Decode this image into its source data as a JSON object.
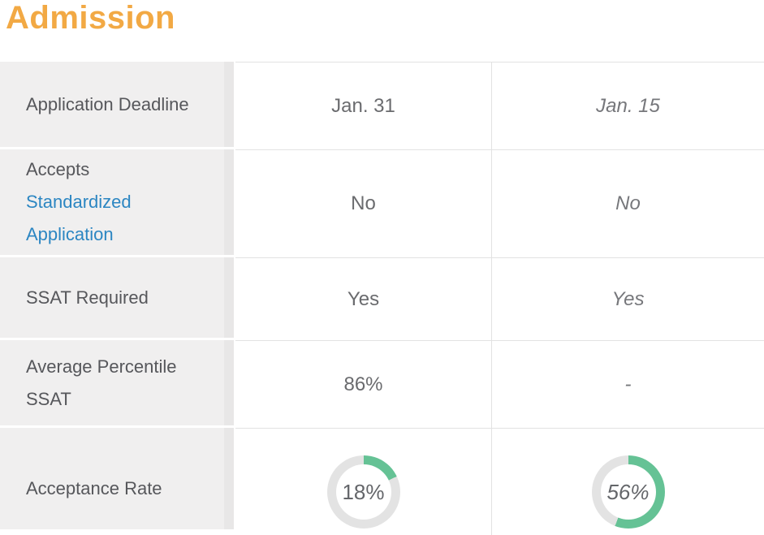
{
  "page": {
    "title": "Admission"
  },
  "colors": {
    "title": "#F2A944",
    "label_bg": "#F0EFEF",
    "label_strip": "#E8E7E7",
    "label_text": "#56575B",
    "link": "#2C86C2",
    "value_primary": "#6A6B6E",
    "value_secondary": "#76777B",
    "border": "#E2E2E2",
    "donut_fill": "#65C295",
    "donut_track": "#E3E3E3",
    "donut_text": "#64666A"
  },
  "table": {
    "rows": [
      {
        "label": "Application Deadline",
        "col1": "Jan. 31",
        "col2": "Jan. 15"
      },
      {
        "label_prefix": "Accepts",
        "label_link": "Standardized Application",
        "col1": "No",
        "col2": "No"
      },
      {
        "label": "SSAT Required",
        "col1": "Yes",
        "col2": "Yes"
      },
      {
        "label": "Average Percentile SSAT",
        "col1": "86%",
        "col2": "-"
      },
      {
        "label": "Acceptance Rate",
        "col1": {
          "display": "18%",
          "percent": 18
        },
        "col2": {
          "display": "56%",
          "percent": 56
        }
      }
    ]
  }
}
